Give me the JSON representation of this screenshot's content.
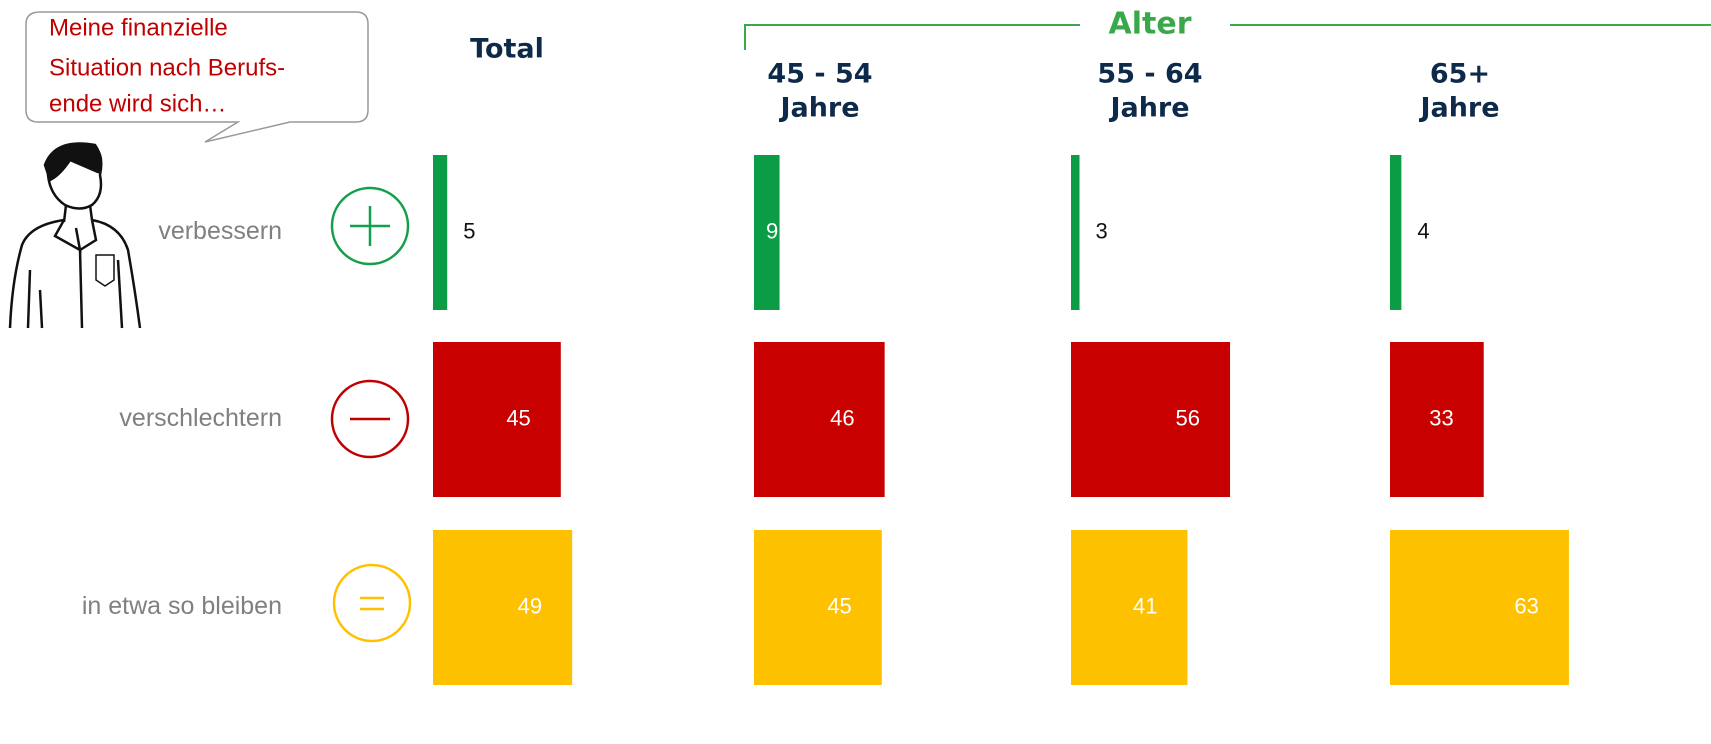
{
  "chart_data": {
    "type": "bar",
    "annotation": [
      "Meine finanzielle",
      "Situation nach Berufs-",
      "ende wird sich…"
    ],
    "group_title": "Alter",
    "categories": [
      "verbessern",
      "verschlechtern",
      "in etwa so bleiben"
    ],
    "colors": [
      "#0b9c45",
      "#c80000",
      "#fdc100"
    ],
    "series": [
      {
        "name": [
          "Total"
        ],
        "values": [
          5,
          45,
          49
        ]
      },
      {
        "name": [
          "45 - 54",
          "Jahre"
        ],
        "values": [
          9,
          46,
          45
        ]
      },
      {
        "name": [
          "55 - 64",
          "Jahre"
        ],
        "values": [
          3,
          56,
          41
        ]
      },
      {
        "name": [
          "65+",
          "Jahre"
        ],
        "values": [
          4,
          33,
          63
        ]
      }
    ]
  }
}
